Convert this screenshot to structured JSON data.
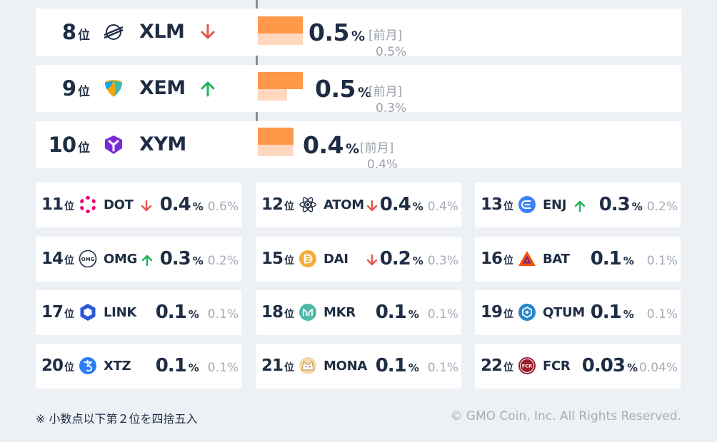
{
  "top_rankings": [
    {
      "rank": "8",
      "rank_suffix": "位",
      "symbol": "XLM",
      "logo": "stellar-icon",
      "trend": "down",
      "share": "0.5",
      "share_unit": "%",
      "prev_label": "[前月]",
      "prev_share": "0.5%",
      "share_value": 0.5,
      "prev_value": 0.5
    },
    {
      "rank": "9",
      "rank_suffix": "位",
      "symbol": "XEM",
      "logo": "nem-icon",
      "trend": "up",
      "share": "0.5",
      "share_unit": "%",
      "prev_label": "[前月]",
      "prev_share": "0.3%",
      "share_value": 0.5,
      "prev_value": 0.3
    },
    {
      "rank": "10",
      "rank_suffix": "位",
      "symbol": "XYM",
      "logo": "symbol-icon",
      "trend": "none",
      "share": "0.4",
      "share_unit": "%",
      "prev_label": "[前月]",
      "prev_share": "0.4%",
      "share_value": 0.4,
      "prev_value": 0.4
    }
  ],
  "grid_rankings": [
    {
      "rank": "11",
      "rank_suffix": "位",
      "symbol": "DOT",
      "logo": "polkadot-icon",
      "trend": "down",
      "share": "0.4",
      "share_unit": "%",
      "prev_share": "0.6%"
    },
    {
      "rank": "12",
      "rank_suffix": "位",
      "symbol": "ATOM",
      "logo": "cosmos-icon",
      "trend": "down",
      "share": "0.4",
      "share_unit": "%",
      "prev_share": "0.4%"
    },
    {
      "rank": "13",
      "rank_suffix": "位",
      "symbol": "ENJ",
      "logo": "enjin-icon",
      "trend": "up",
      "share": "0.3",
      "share_unit": "%",
      "prev_share": "0.2%"
    },
    {
      "rank": "14",
      "rank_suffix": "位",
      "symbol": "OMG",
      "logo": "omg-icon",
      "trend": "up",
      "share": "0.3",
      "share_unit": "%",
      "prev_share": "0.2%"
    },
    {
      "rank": "15",
      "rank_suffix": "位",
      "symbol": "DAI",
      "logo": "dai-icon",
      "trend": "down",
      "share": "0.2",
      "share_unit": "%",
      "prev_share": "0.3%"
    },
    {
      "rank": "16",
      "rank_suffix": "位",
      "symbol": "BAT",
      "logo": "bat-icon",
      "trend": "none",
      "share": "0.1",
      "share_unit": "%",
      "prev_share": "0.1%"
    },
    {
      "rank": "17",
      "rank_suffix": "位",
      "symbol": "LINK",
      "logo": "chainlink-icon",
      "trend": "none",
      "share": "0.1",
      "share_unit": "%",
      "prev_share": "0.1%"
    },
    {
      "rank": "18",
      "rank_suffix": "位",
      "symbol": "MKR",
      "logo": "maker-icon",
      "trend": "none",
      "share": "0.1",
      "share_unit": "%",
      "prev_share": "0.1%"
    },
    {
      "rank": "19",
      "rank_suffix": "位",
      "symbol": "QTUM",
      "logo": "qtum-icon",
      "trend": "none",
      "share": "0.1",
      "share_unit": "%",
      "prev_share": "0.1%"
    },
    {
      "rank": "20",
      "rank_suffix": "位",
      "symbol": "XTZ",
      "logo": "tezos-icon",
      "trend": "none",
      "share": "0.1",
      "share_unit": "%",
      "prev_share": "0.1%"
    },
    {
      "rank": "21",
      "rank_suffix": "位",
      "symbol": "MONA",
      "logo": "monacoin-icon",
      "trend": "none",
      "share": "0.1",
      "share_unit": "%",
      "prev_share": "0.1%"
    },
    {
      "rank": "22",
      "rank_suffix": "位",
      "symbol": "FCR",
      "logo": "fcr-icon",
      "trend": "none",
      "share": "0.03",
      "share_unit": "%",
      "prev_share": "0.04%"
    }
  ],
  "colors": {
    "up": "#1db45a",
    "down": "#e2574c",
    "bar": "#ff9848",
    "bar_prev": "#ffd7bf"
  },
  "footer": {
    "note": "※ 小数点以下第２位を四捨五入",
    "copyright": "© GMO Coin, Inc. All Rights Reserved."
  }
}
